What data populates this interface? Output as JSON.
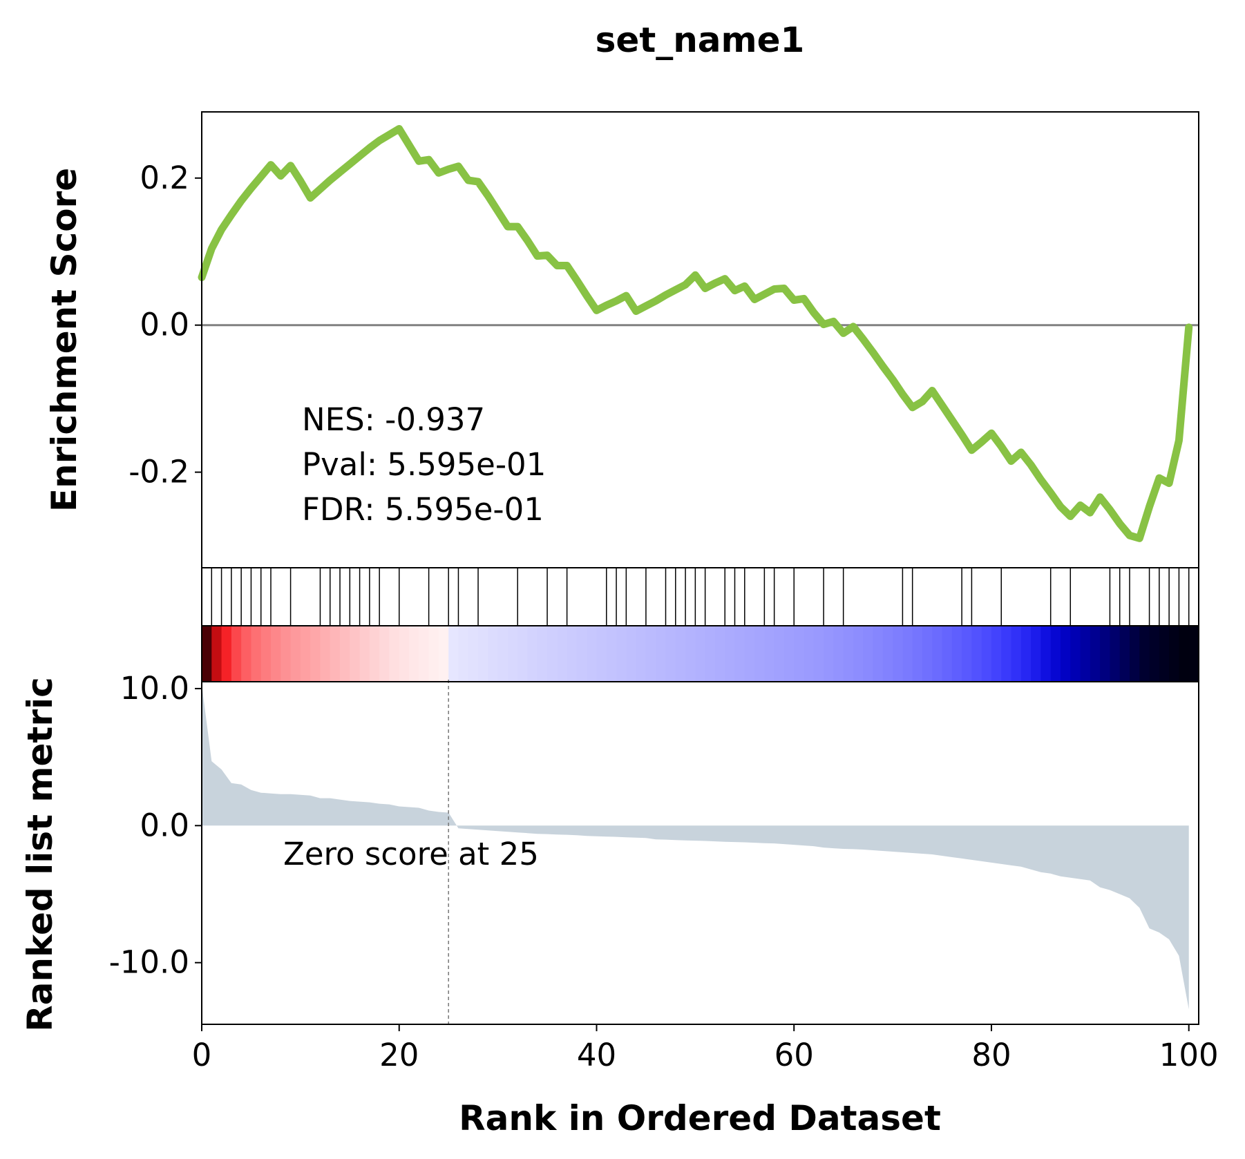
{
  "chart_data": {
    "type": "line",
    "title": "set_name1",
    "xlabel": "Rank in Ordered Dataset",
    "xlim": [
      0,
      101
    ],
    "x_ticks": [
      "0",
      "20",
      "40",
      "60",
      "80",
      "100"
    ],
    "x_tick_values": [
      0,
      20,
      40,
      60,
      80,
      100
    ],
    "es_panel": {
      "ylabel": "Enrichment Score",
      "ylim": [
        -0.33,
        0.29
      ],
      "y_ticks": [
        "0.2",
        "0.0",
        "-0.2"
      ],
      "y_tick_values": [
        0.2,
        0.0,
        -0.2
      ],
      "zero_line": true,
      "line_color": "#88c244",
      "running_es": {
        "x": [
          0,
          1,
          2,
          3,
          4,
          5,
          6,
          7,
          8,
          9,
          10,
          11,
          12,
          13,
          14,
          15,
          16,
          17,
          18,
          19,
          20,
          21,
          22,
          23,
          24,
          25,
          26,
          27,
          28,
          29,
          30,
          31,
          32,
          33,
          34,
          35,
          36,
          37,
          38,
          39,
          40,
          41,
          42,
          43,
          44,
          45,
          46,
          47,
          48,
          49,
          50,
          51,
          52,
          53,
          54,
          55,
          56,
          57,
          58,
          59,
          60,
          61,
          62,
          63,
          64,
          65,
          66,
          67,
          68,
          69,
          70,
          71,
          72,
          73,
          74,
          75,
          76,
          77,
          78,
          79,
          80,
          81,
          82,
          83,
          84,
          85,
          86,
          87,
          88,
          89,
          90,
          91,
          92,
          93,
          94,
          95,
          96,
          97,
          98,
          99,
          100
        ],
        "y": [
          0.065,
          0.104,
          0.13,
          0.15,
          0.169,
          0.186,
          0.202,
          0.218,
          0.203,
          0.217,
          0.196,
          0.173,
          0.185,
          0.197,
          0.208,
          0.219,
          0.23,
          0.241,
          0.251,
          0.259,
          0.267,
          0.245,
          0.223,
          0.225,
          0.207,
          0.212,
          0.216,
          0.197,
          0.195,
          0.176,
          0.155,
          0.134,
          0.134,
          0.115,
          0.094,
          0.095,
          0.081,
          0.081,
          0.061,
          0.04,
          0.02,
          0.027,
          0.033,
          0.04,
          0.019,
          0.026,
          0.033,
          0.041,
          0.048,
          0.055,
          0.068,
          0.05,
          0.057,
          0.063,
          0.047,
          0.053,
          0.035,
          0.042,
          0.049,
          0.05,
          0.034,
          0.036,
          0.017,
          0.001,
          0.005,
          -0.011,
          -0.002,
          -0.019,
          -0.037,
          -0.056,
          -0.074,
          -0.094,
          -0.112,
          -0.104,
          -0.089,
          -0.109,
          -0.129,
          -0.149,
          -0.17,
          -0.159,
          -0.147,
          -0.165,
          -0.185,
          -0.173,
          -0.19,
          -0.21,
          -0.228,
          -0.247,
          -0.26,
          -0.245,
          -0.255,
          -0.234,
          -0.251,
          -0.27,
          -0.286,
          -0.29,
          -0.247,
          -0.208,
          -0.215,
          -0.157,
          -0.003
        ]
      },
      "annotations": [
        "NES: -0.937",
        "Pval: 5.595e-01",
        "FDR: 5.595e-01"
      ]
    },
    "hit_panel": {
      "hits": [
        0,
        1,
        2,
        3,
        4,
        5,
        6,
        7,
        9,
        12,
        13,
        14,
        15,
        16,
        17,
        18,
        20,
        23,
        25,
        26,
        28,
        32,
        35,
        37,
        41,
        42,
        43,
        45,
        47,
        48,
        49,
        50,
        51,
        53,
        54,
        55,
        57,
        58,
        60,
        63,
        65,
        71,
        72,
        77,
        78,
        81,
        86,
        88,
        92,
        93,
        94,
        96,
        97,
        98,
        99,
        100
      ]
    },
    "heatmap_strip": {
      "colors": [
        "#4a0005",
        "#c40d12",
        "#f52227",
        "#fb474c",
        "#fd5f63",
        "#fd7073",
        "#fd7c7f",
        "#fd878a",
        "#fd9194",
        "#fd999c",
        "#fea0a2",
        "#fea7a9",
        "#feafb1",
        "#feb6b8",
        "#febdbf",
        "#fec4c6",
        "#fecbcd",
        "#fed2d3",
        "#fed8da",
        "#ffdfe0",
        "#ffe3e4",
        "#ffe7e8",
        "#ffeaeb",
        "#ffeeee",
        "#fff1f1",
        "#e6e6ff",
        "#e3e3fe",
        "#e1e1fe",
        "#dfdffe",
        "#dcdcfe",
        "#dadafe",
        "#d8d8fe",
        "#d6d6fe",
        "#d3d3fe",
        "#d1d1fe",
        "#cfcffe",
        "#cdcdfe",
        "#cbcbfe",
        "#c9c9fe",
        "#c7c7fe",
        "#c5c5fe",
        "#c3c3fe",
        "#c1c1fe",
        "#bfbffe",
        "#bdbdfe",
        "#bbbbfe",
        "#b9b9fe",
        "#b7b7fe",
        "#b5b5fe",
        "#b3b3fe",
        "#b1b1fe",
        "#afaffe",
        "#adadfe",
        "#ababfe",
        "#a9a9fe",
        "#a7a7fe",
        "#a5a5fe",
        "#a3a3fe",
        "#a1a1fe",
        "#9f9ffe",
        "#9d9dfe",
        "#9b9bfe",
        "#9999fe",
        "#9696fe",
        "#9393fe",
        "#9090fe",
        "#8d8dfe",
        "#8a8afe",
        "#8686fe",
        "#8282fe",
        "#7e7efe",
        "#7a7afe",
        "#7575fe",
        "#7070fe",
        "#6b6bfe",
        "#6565fe",
        "#5f5ffe",
        "#5959fe",
        "#5252fe",
        "#4b4bfe",
        "#4343fd",
        "#3a3afb",
        "#3131f8",
        "#2727f3",
        "#1c1ceb",
        "#1010e0",
        "#0707d2",
        "#0202c3",
        "#0000b3",
        "#0000a2",
        "#000091",
        "#00007f",
        "#00006c",
        "#000058",
        "#000044",
        "#000030",
        "#000028",
        "#000020",
        "#000018",
        "#000010"
      ],
      "zero_index": 25,
      "note": ""
    },
    "metric_panel": {
      "ylabel": "Ranked list metric",
      "ylim": [
        -14.5,
        10.5
      ],
      "y_ticks": [
        "10.0",
        "0.0",
        "-10.0"
      ],
      "y_tick_values": [
        10,
        0,
        -10
      ],
      "fill_color": "#c8d3dc",
      "metric": {
        "x": [
          0,
          1,
          2,
          3,
          4,
          5,
          6,
          7,
          8,
          9,
          10,
          11,
          12,
          13,
          14,
          15,
          16,
          17,
          18,
          19,
          20,
          21,
          22,
          23,
          24,
          25,
          26,
          27,
          28,
          29,
          30,
          31,
          32,
          33,
          34,
          35,
          36,
          37,
          38,
          39,
          40,
          41,
          42,
          43,
          44,
          45,
          46,
          47,
          48,
          49,
          50,
          51,
          52,
          53,
          54,
          55,
          56,
          57,
          58,
          59,
          60,
          61,
          62,
          63,
          64,
          65,
          66,
          67,
          68,
          69,
          70,
          71,
          72,
          73,
          74,
          75,
          76,
          77,
          78,
          79,
          80,
          81,
          82,
          83,
          84,
          85,
          86,
          87,
          88,
          89,
          90,
          91,
          92,
          93,
          94,
          95,
          96,
          97,
          98,
          99,
          100
        ],
        "y": [
          10.3,
          4.7,
          4.1,
          3.1,
          3.0,
          2.6,
          2.4,
          2.35,
          2.3,
          2.3,
          2.25,
          2.2,
          2.0,
          2.0,
          1.9,
          1.8,
          1.75,
          1.7,
          1.6,
          1.55,
          1.4,
          1.35,
          1.3,
          1.1,
          1.0,
          0.95,
          -0.2,
          -0.25,
          -0.3,
          -0.35,
          -0.4,
          -0.45,
          -0.5,
          -0.55,
          -0.6,
          -0.62,
          -0.65,
          -0.67,
          -0.7,
          -0.75,
          -0.78,
          -0.8,
          -0.82,
          -0.85,
          -0.88,
          -0.9,
          -1.0,
          -1.02,
          -1.05,
          -1.08,
          -1.1,
          -1.12,
          -1.15,
          -1.18,
          -1.2,
          -1.22,
          -1.25,
          -1.28,
          -1.3,
          -1.35,
          -1.4,
          -1.45,
          -1.5,
          -1.6,
          -1.65,
          -1.7,
          -1.72,
          -1.75,
          -1.8,
          -1.85,
          -1.9,
          -1.95,
          -2.0,
          -2.05,
          -2.1,
          -2.2,
          -2.3,
          -2.4,
          -2.5,
          -2.6,
          -2.7,
          -2.8,
          -2.9,
          -3.0,
          -3.2,
          -3.4,
          -3.5,
          -3.7,
          -3.8,
          -3.9,
          -4.0,
          -4.5,
          -4.7,
          -5.0,
          -5.3,
          -6.0,
          -7.5,
          -7.8,
          -8.3,
          -9.5,
          -13.4
        ]
      },
      "zero_cross_x": 25,
      "annotation": "Zero score at 25"
    }
  }
}
